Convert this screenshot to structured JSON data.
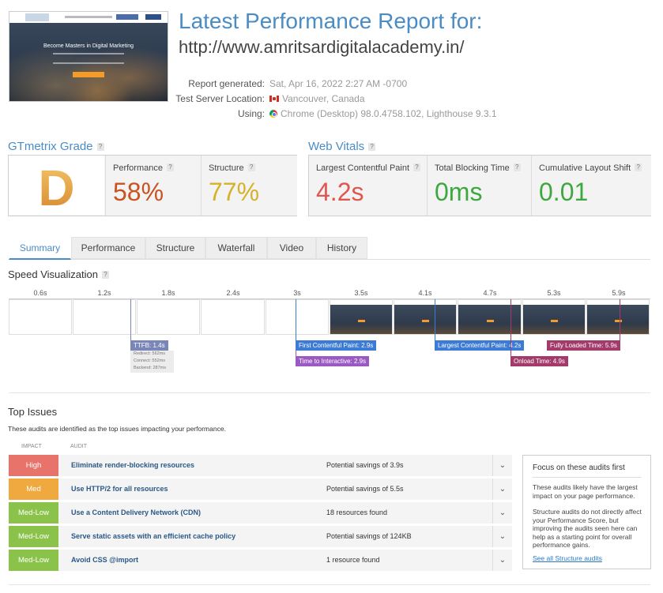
{
  "header": {
    "title": "Latest Performance Report for:",
    "url": "http://www.amritsardigitalacademy.in/",
    "thumbnail_heading": "Become Masters in Digital Marketing",
    "meta": [
      {
        "label": "Report generated:",
        "value": "Sat, Apr 16, 2022 2:27 AM -0700",
        "icon": ""
      },
      {
        "label": "Test Server Location:",
        "value": "Vancouver, Canada",
        "icon": "canada-flag-icon"
      },
      {
        "label": "Using:",
        "value": "Chrome (Desktop) 98.0.4758.102, Lighthouse 9.3.1",
        "icon": "chrome-icon"
      }
    ]
  },
  "grade": {
    "title": "GTmetrix Grade",
    "help": "?",
    "letter": "D",
    "performance_label": "Performance",
    "performance_value": "58%",
    "structure_label": "Structure",
    "structure_value": "77%",
    "colors": {
      "performance": "#c9531f",
      "structure": "#d6b22a",
      "letter": "#e3a13a"
    }
  },
  "vitals": {
    "title": "Web Vitals",
    "help": "?",
    "lcp_label": "Largest Contentful Paint",
    "lcp_value": "4.2s",
    "tbt_label": "Total Blocking Time",
    "tbt_value": "0ms",
    "cls_label": "Cumulative Layout Shift",
    "cls_value": "0.01",
    "colors": {
      "lcp": "#e0564f",
      "tbt": "#3da83d",
      "cls": "#3da83d"
    }
  },
  "tabs": [
    "Summary",
    "Performance",
    "Structure",
    "Waterfall",
    "Video",
    "History"
  ],
  "speed": {
    "title": "Speed Visualization",
    "ticks": [
      "0.6s",
      "1.2s",
      "1.8s",
      "2.4s",
      "3s",
      "3.5s",
      "4.1s",
      "4.7s",
      "5.3s",
      "5.9s"
    ],
    "markers": {
      "ttfb": "TTFB: 1.4s",
      "fcp": "First Contentful Paint: 2.9s",
      "tti": "Time to Interactive: 2.9s",
      "lcp": "Largest Contentful Paint: 4.2s",
      "onload": "Onload Time: 4.9s",
      "fully": "Fully Loaded Time: 5.9s"
    },
    "ttfb_details": [
      "Redirect: 562ms",
      "Connect: 552ms",
      "Backend: 287ms"
    ]
  },
  "issues": {
    "title": "Top Issues",
    "description": "These audits are identified as the top issues impacting your performance.",
    "col_impact": "IMPACT",
    "col_audit": "AUDIT",
    "rows": [
      {
        "impact": "High",
        "audit": "Eliminate render-blocking resources",
        "detail": "Potential savings of 3.9s",
        "color": "#e8736b"
      },
      {
        "impact": "Med",
        "audit": "Use HTTP/2 for all resources",
        "detail": "Potential savings of 5.5s",
        "color": "#f0a93f"
      },
      {
        "impact": "Med-Low",
        "audit": "Use a Content Delivery Network (CDN)",
        "detail": "18 resources found",
        "color": "#8bc34a"
      },
      {
        "impact": "Med-Low",
        "audit": "Serve static assets with an efficient cache policy",
        "detail": "Potential savings of 124KB",
        "color": "#8bc34a"
      },
      {
        "impact": "Med-Low",
        "audit": "Avoid CSS @import",
        "detail": "1 resource found",
        "color": "#8bc34a"
      }
    ]
  },
  "focus": {
    "title": "Focus on these audits first",
    "p1": "These audits likely have the largest impact on your page performance.",
    "p2": "Structure audits do not directly affect your Performance Score, but improving the audits seen here can help as a starting point for overall performance gains.",
    "link": "See all Structure audits"
  }
}
